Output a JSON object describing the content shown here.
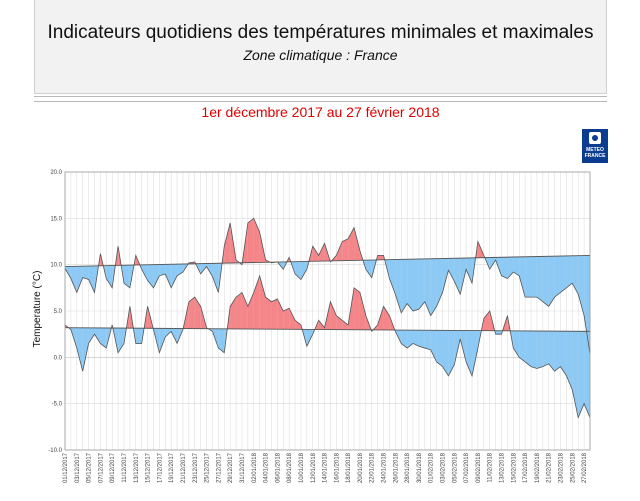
{
  "header": {
    "title": "Indicateurs quotidiens des températures minimales et maximales",
    "subtitle": "Zone climatique : France"
  },
  "period": "1er décembre 2017 au 27 février 2018",
  "logo": {
    "text_line1": "METEO",
    "text_line2": "FRANCE",
    "color": "#0a3d8f"
  },
  "colors": {
    "above": "#f4868a",
    "below": "#8ccaf5",
    "line": "#555555",
    "grid": "#d9d9d9"
  },
  "chart_data": {
    "type": "area",
    "ylabel": "Temperature (°C)",
    "ylim": [
      -10,
      20
    ],
    "yticks": [
      -10.0,
      -5.0,
      0.0,
      5.0,
      10.0,
      15.0,
      20.0
    ],
    "grid": true,
    "x_labels": [
      "01/12/2017",
      "03/12/2017",
      "05/12/2017",
      "07/12/2017",
      "09/12/2017",
      "11/12/2017",
      "13/12/2017",
      "15/12/2017",
      "17/12/2017",
      "19/12/2017",
      "21/12/2017",
      "23/12/2017",
      "25/12/2017",
      "27/12/2017",
      "29/12/2017",
      "31/12/2017",
      "02/01/2018",
      "04/01/2018",
      "06/01/2018",
      "08/01/2018",
      "10/01/2018",
      "12/01/2018",
      "14/01/2018",
      "16/01/2018",
      "18/01/2018",
      "20/01/2018",
      "22/01/2018",
      "24/01/2018",
      "26/01/2018",
      "28/01/2018",
      "30/01/2018",
      "01/02/2018",
      "03/02/2018",
      "05/02/2018",
      "07/02/2018",
      "09/02/2018",
      "11/02/2018",
      "13/02/2018",
      "15/02/2018",
      "17/02/2018",
      "19/02/2018",
      "21/02/2018",
      "23/02/2018",
      "25/02/2018",
      "27/02/2018"
    ],
    "series": [
      {
        "values": [
          9.6,
          8.5,
          7.0,
          8.6,
          8.4,
          7.0,
          11.2,
          8.5,
          7.5,
          12.0,
          8.0,
          7.5,
          11.0,
          9.5,
          8.3,
          7.5,
          8.8,
          9.0,
          7.5,
          8.8,
          9.2,
          10.2,
          10.3,
          9.0,
          9.8,
          8.7,
          7.0,
          12.0,
          14.5,
          10.5,
          10.0,
          14.5,
          15.0,
          13.5,
          10.5,
          10.2,
          10.3,
          9.5,
          10.8,
          9.0,
          8.4,
          9.5,
          12.0,
          11.0,
          12.3,
          10.3,
          11.0,
          12.5,
          12.8,
          14.0,
          11.5,
          9.5,
          8.6,
          11.0,
          11.0,
          8.5,
          6.8,
          4.8,
          5.8,
          5.0,
          5.2,
          6.0,
          4.5,
          5.5,
          7.0,
          9.4,
          8.2,
          6.8,
          9.5,
          8.0,
          12.5,
          11.0,
          9.5,
          10.5,
          8.8,
          8.5,
          9.2,
          8.8,
          6.5,
          6.5,
          6.5,
          6.0,
          5.5,
          6.5,
          7.0,
          7.5,
          8.0,
          6.8,
          4.5,
          0.4
        ]
      },
      {
        "values": [
          3.5,
          3.0,
          1.0,
          -1.5,
          1.5,
          2.5,
          1.5,
          1.0,
          3.5,
          0.5,
          1.5,
          5.5,
          1.5,
          1.5,
          5.5,
          3.0,
          0.5,
          2.2,
          2.8,
          1.5,
          3.0,
          6.0,
          6.5,
          5.5,
          3.2,
          2.8,
          1.0,
          0.5,
          5.5,
          6.5,
          7.0,
          5.5,
          7.0,
          8.8,
          6.5,
          6.0,
          6.3,
          5.0,
          5.3,
          4.0,
          3.5,
          1.2,
          2.5,
          4.0,
          3.2,
          6.0,
          4.5,
          4.0,
          3.5,
          7.5,
          7.0,
          4.5,
          2.8,
          3.5,
          5.5,
          4.5,
          2.8,
          1.5,
          1.0,
          1.5,
          1.2,
          1.0,
          0.8,
          -0.5,
          -1.0,
          -2.0,
          -0.8,
          2.0,
          -0.5,
          -2.0,
          1.0,
          4.2,
          5.0,
          2.5,
          2.5,
          4.5,
          1.0,
          0.0,
          -0.5,
          -1.0,
          -1.2,
          -1.0,
          -0.7,
          -1.5,
          -1.0,
          -2.0,
          -3.5,
          -6.5,
          -5.0,
          -6.5
        ]
      }
    ],
    "normals": [
      {
        "start": 9.8,
        "end": 11.0
      },
      {
        "start": 3.2,
        "end": 2.8
      }
    ]
  }
}
